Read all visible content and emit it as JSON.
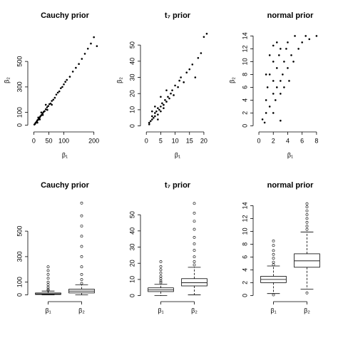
{
  "chart_data": [
    {
      "type": "scatter",
      "title": "Cauchy prior",
      "x_label": "β₁",
      "y_label": "β₂",
      "color": "#000000",
      "x": [
        2,
        4,
        6,
        8,
        10,
        12,
        14,
        16,
        18,
        20,
        22,
        25,
        28,
        30,
        33,
        36,
        40,
        44,
        48,
        52,
        56,
        60,
        65,
        70,
        75,
        80,
        85,
        90,
        95,
        100,
        105,
        110,
        120,
        130,
        140,
        150,
        160,
        170,
        180,
        190,
        200,
        210,
        12,
        20,
        30,
        45,
        60,
        15,
        25,
        40
      ],
      "y": [
        5,
        10,
        18,
        22,
        30,
        38,
        42,
        50,
        55,
        62,
        70,
        78,
        85,
        95,
        105,
        110,
        125,
        140,
        150,
        165,
        170,
        190,
        200,
        215,
        240,
        255,
        265,
        290,
        300,
        320,
        340,
        355,
        380,
        420,
        450,
        480,
        520,
        560,
        600,
        640,
        690,
        620,
        20,
        45,
        80,
        120,
        160,
        60,
        100,
        160
      ],
      "xlim": [
        -8,
        215
      ],
      "ylim": [
        -25,
        730
      ],
      "xticks": [
        0,
        50,
        100,
        200
      ],
      "yticks": [
        0,
        100,
        300,
        500
      ]
    },
    {
      "type": "scatter",
      "title": "t₇ prior",
      "x_label": "β₁",
      "y_label": "β₂",
      "color": "#000000",
      "x": [
        1,
        1.5,
        2,
        2,
        2.5,
        3,
        3,
        3.5,
        4,
        4,
        4.5,
        5,
        5,
        5.5,
        6,
        6,
        6.5,
        7,
        7.5,
        8,
        8.5,
        9,
        9.5,
        10,
        11,
        11.5,
        12,
        13,
        14,
        15,
        16,
        17,
        18,
        19,
        20,
        21,
        3,
        5,
        7,
        2,
        1,
        4
      ],
      "y": [
        2,
        3,
        4,
        6,
        5,
        8,
        6,
        9,
        7,
        11,
        10,
        12,
        9,
        14,
        13,
        11,
        16,
        15,
        18,
        17,
        20,
        22,
        19,
        25,
        24,
        28,
        30,
        27,
        33,
        35,
        38,
        30,
        42,
        45,
        55,
        57,
        12,
        18,
        22,
        9,
        1,
        4
      ],
      "xlim": [
        -0.8,
        22.5
      ],
      "ylim": [
        -1.5,
        58
      ],
      "xticks": [
        0,
        5,
        10,
        15,
        20
      ],
      "yticks": [
        0,
        10,
        20,
        30,
        40,
        50
      ]
    },
    {
      "type": "scatter",
      "title": "normal prior",
      "x_label": "β₁",
      "y_label": "β₂",
      "color": "#000000",
      "x": [
        0.5,
        1,
        1,
        1.2,
        1.5,
        1.5,
        2,
        2,
        2,
        2,
        2.3,
        2.5,
        2.5,
        2.8,
        3,
        3,
        3,
        3.3,
        3.5,
        3.5,
        3.8,
        4,
        4,
        4.2,
        4.5,
        4.8,
        5,
        5.5,
        6,
        6.5,
        7,
        8,
        1.5,
        2.5,
        1,
        0.8,
        3,
        2
      ],
      "y": [
        1,
        2,
        4,
        6,
        3,
        8,
        2,
        5,
        7,
        10,
        4,
        6,
        9,
        11,
        5,
        7,
        12,
        8,
        6,
        10,
        12,
        9,
        13,
        7,
        11,
        10,
        14,
        12,
        13,
        14,
        13.5,
        14,
        11,
        13,
        8,
        0.5,
        0.8,
        12.5
      ],
      "xlim": [
        -0.3,
        9
      ],
      "ylim": [
        -0.4,
        14.6
      ],
      "xticks": [
        0,
        2,
        4,
        6,
        8
      ],
      "yticks": [
        0,
        2,
        4,
        6,
        8,
        10,
        12,
        14
      ]
    },
    {
      "type": "box",
      "title": "Cauchy prior",
      "categories": [
        "β₁",
        "β₂"
      ],
      "color": "#000000",
      "boxes": [
        {
          "whislo": 0,
          "q1": 3,
          "med": 8,
          "q3": 15,
          "whishi": 30,
          "fliers": [
            35,
            45,
            60,
            80,
            100,
            130,
            160,
            190,
            220
          ]
        },
        {
          "whislo": 0,
          "q1": 15,
          "med": 30,
          "q3": 45,
          "whishi": 80,
          "fliers": [
            90,
            120,
            160,
            220,
            300,
            380,
            460,
            540,
            620,
            720
          ]
        }
      ],
      "xlim": [
        0.5,
        2.5
      ],
      "ylim": [
        -25,
        730
      ],
      "yticks": [
        0,
        100,
        300,
        500
      ]
    },
    {
      "type": "box",
      "title": "t₇ prior",
      "categories": [
        "β₁",
        "β₂"
      ],
      "color": "#000000",
      "boxes": [
        {
          "whislo": 0,
          "q1": 2.5,
          "med": 3.5,
          "q3": 4.8,
          "whishi": 7,
          "fliers": [
            8,
            9,
            10.5,
            12,
            14,
            16,
            18,
            21
          ]
        },
        {
          "whislo": 0.5,
          "q1": 6,
          "med": 8,
          "q3": 10.5,
          "whishi": 17.5,
          "fliers": [
            19,
            21,
            24,
            28,
            32,
            36,
            41,
            46,
            51,
            57
          ]
        }
      ],
      "xlim": [
        0.5,
        2.5
      ],
      "ylim": [
        -1.5,
        58
      ],
      "yticks": [
        0,
        10,
        20,
        30,
        40,
        50
      ]
    },
    {
      "type": "box",
      "title": "normal prior",
      "categories": [
        "β₁",
        "β₂"
      ],
      "color": "#000000",
      "boxes": [
        {
          "whislo": 0.3,
          "q1": 2,
          "med": 2.5,
          "q3": 3,
          "whishi": 4.6,
          "fliers": [
            0.1,
            4.8,
            5.2,
            5.8,
            6.4,
            7,
            7.8,
            8.5
          ]
        },
        {
          "whislo": 1,
          "q1": 4.4,
          "med": 5.4,
          "q3": 6.5,
          "whishi": 9.9,
          "fliers": [
            0.4,
            10.3,
            10.8,
            11.4,
            12,
            12.6,
            13.2,
            13.8,
            14.3
          ]
        }
      ],
      "xlim": [
        0.5,
        2.5
      ],
      "ylim": [
        -0.4,
        14.6
      ],
      "yticks": [
        0,
        2,
        4,
        6,
        8,
        10,
        12,
        14
      ]
    }
  ]
}
